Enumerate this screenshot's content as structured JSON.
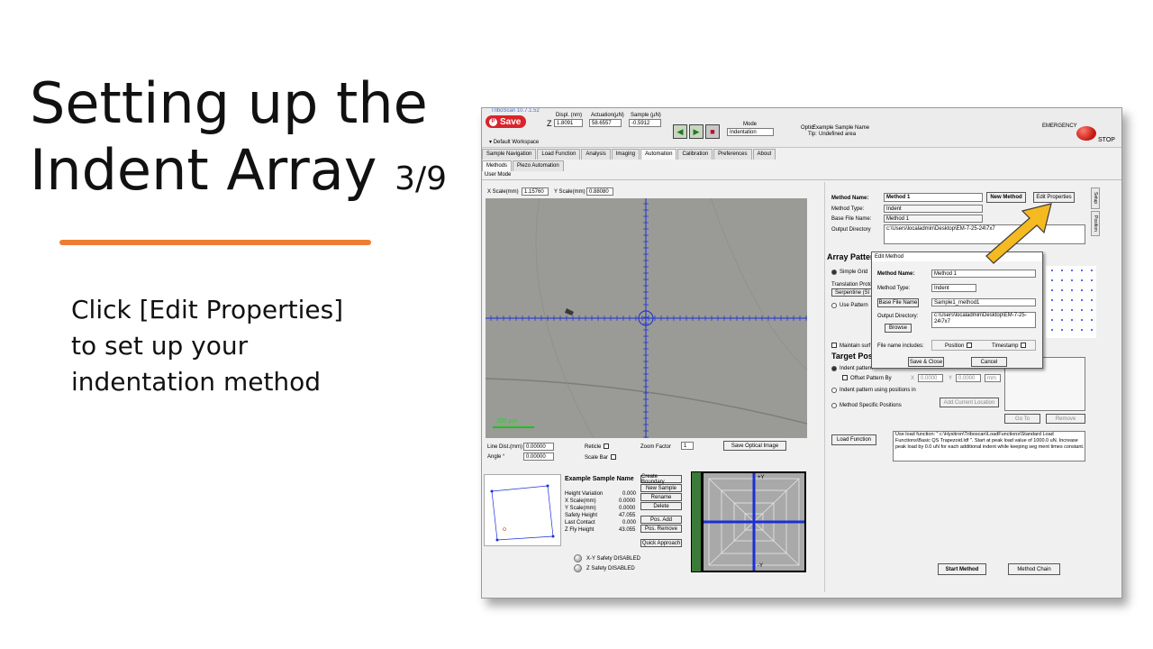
{
  "slide": {
    "title_line1": "Setting up the",
    "title_line2": "Indent Array",
    "step": "3/9",
    "instructions": [
      "Click [Edit Properties]",
      "to set up your",
      "indentation method"
    ],
    "accent_color": "#ed7d31"
  },
  "app": {
    "window_title": "TriboScan 10.7.1.52",
    "save_label": "Save",
    "workspace_label": "Default Workspace",
    "readout": {
      "axis": "Z",
      "displ_label": "Displ. (nm)",
      "displ_value": "1.8091",
      "actuation_label": "Actuation(µN)",
      "actuation_value": "58.6557",
      "sample_label": "Sample (µN)",
      "sample_value": "-0.5912"
    },
    "mode_label": "Mode",
    "mode_value": "Indentation",
    "optic_label": "Optic:",
    "optic_value": "Example Sample Name",
    "tip_label": "Tip:",
    "tip_value": "Undefined area",
    "emergency_label": "EMERGENCY",
    "stop_label": "STOP",
    "main_tabs": [
      "Sample Navigation",
      "Load Function",
      "Analysis",
      "Imaging",
      "Automation",
      "Calibration",
      "Preferences",
      "About"
    ],
    "sub_tabs": [
      "Methods",
      "Piezo Automation"
    ],
    "user_mode": "User Mode"
  },
  "camera": {
    "x_scale_label": "X Scale(mm)",
    "x_scale_value": "1.15760",
    "y_scale_label": "Y Scale(mm)",
    "y_scale_value": "0.88080",
    "scale_bar_text": "100 µm",
    "line_dist_label": "Line Dist.(mm)",
    "line_dist_value": "0.00000",
    "angle_label": "Angle °",
    "angle_value": "0.00000",
    "reticle_label": "Reticle",
    "scale_bar_label": "Scale Bar",
    "zoom_label": "Zoom Factor",
    "zoom_value": "1",
    "save_optical_label": "Save Optical Image"
  },
  "sample_info": {
    "name": "Example Sample Name",
    "height_variation_label": "Height Variation",
    "height_variation_value": "0.000",
    "x_scale_label": "X Scale(mm)",
    "x_scale_value": "0.0000",
    "y_scale_label": "Y Scale(mm)",
    "y_scale_value": "0.0000",
    "safety_height_label": "Safety Height",
    "safety_height_value": "47.055",
    "last_contact_label": "Last Contact",
    "last_contact_value": "0.000",
    "z_fly_label": "Z Fly Height",
    "z_fly_value": "43.055",
    "buttons": [
      "Create Boundary",
      "New Sample",
      "Rename",
      "Delete",
      "Pos. Add",
      "Pos. Remove",
      "Quick Approach"
    ],
    "xy_safety": "X-Y Safety DISABLED",
    "z_safety": "Z Safety DISABLED",
    "zoom_axis_top": "+Y",
    "zoom_axis_bottom": "-Y"
  },
  "method": {
    "name_label": "Method Name:",
    "name_value": "Method 1",
    "new_method_label": "New Method",
    "edit_properties_label": "Edit Properties",
    "type_label": "Method Type:",
    "type_value": "Indent",
    "base_file_label": "Base File Name:",
    "base_file_value": "Method 1",
    "output_dir_label": "Output Directory",
    "output_dir_value": "c:\\Users\\localadmin\\Desktop\\EM-7-25-24\\7x7",
    "array_pattern_title": "Array Pattern",
    "simple_grid_label": "Simple Grid",
    "translation_label": "Translation Protocol",
    "serpentine_label": "Serpentine (Sl",
    "use_pattern_label": "Use Pattern",
    "maintain_label": "Maintain surf",
    "target_title": "Target Posi",
    "indent_pattern_label": "Indent pattern",
    "offset_pattern_label": "Offset Pattern By",
    "offset_x_label": "X",
    "offset_x_value": "0.0000",
    "offset_y_label": "Y",
    "offset_y_value": "0.0000",
    "offset_unit": "mm",
    "indent_positions_label": "Indent pattern using positions in",
    "add_location_label": "Add Current Location",
    "method_specific_label": "Method Specific Positions",
    "go_to_label": "Go To",
    "remove_label": "Remove",
    "load_function_label": "Load Function",
    "load_function_text": "Use load function: \" c:\\Hysitron\\Triboscan\\LoadFunctions\\Standard Load Functions\\Basic QS Trapezoid.ldf \". Start at peak load value of 1000.0 uN. Increase peak load by 0.0 uN for each additional indent while keeping seg ment times constant.",
    "start_method_label": "Start Method",
    "method_chain_label": "Method Chain",
    "side_tabs": [
      "Setup",
      "Position"
    ]
  },
  "dialog": {
    "title": "Edit Method",
    "name_label": "Method Name:",
    "name_value": "Method 1",
    "type_label": "Method Type:",
    "type_value": "Indent",
    "base_file_button": "Base File Name",
    "base_file_value": "Sample1_method1",
    "output_dir_label": "Output Directory:",
    "output_dir_value": "c:\\Users\\localadmin\\Desktop\\EM-7-25-24\\7x7",
    "browse_label": "Browse",
    "includes_label": "File name includes:",
    "position_label": "Position",
    "timestamp_label": "Timestamp",
    "save_close_label": "Save & Close",
    "cancel_label": "Cancel"
  },
  "colors": {
    "crosshair": "#1a2fd6",
    "save_red": "#d9242b",
    "arrow_fill": "#f5b921",
    "arrow_stroke": "#3a3a3a"
  }
}
